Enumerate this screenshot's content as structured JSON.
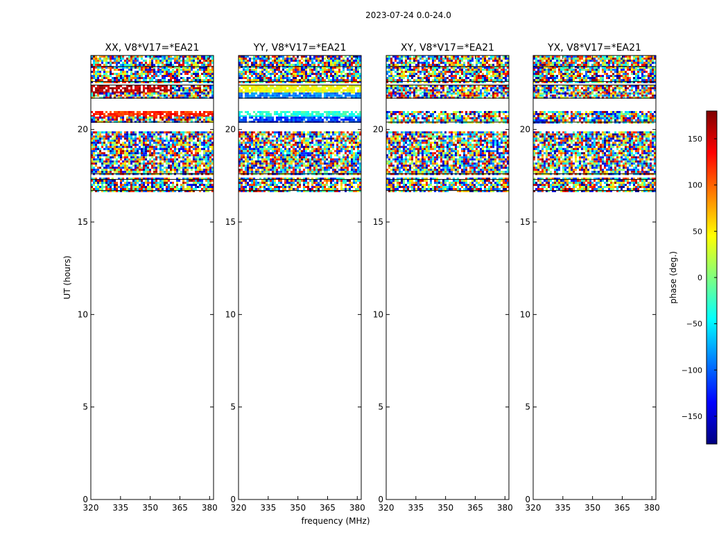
{
  "figure": {
    "suptitle": "2023-07-24 0.0-24.0",
    "xlabel": "frequency (MHz)",
    "ylabel": "UT (hours)"
  },
  "colorbar": {
    "label": "phase (deg.)",
    "range": [
      -180,
      180
    ],
    "ticks": [
      150,
      100,
      50,
      0,
      -50,
      -100,
      -150
    ],
    "tick_labels": [
      "150",
      "100",
      "50",
      "0",
      "−50",
      "−100",
      "−150"
    ],
    "colormap": "jet",
    "colors": [
      "#00007f",
      "#0000ff",
      "#007fff",
      "#00ffff",
      "#7fff7f",
      "#ffff00",
      "#ff7f00",
      "#ff0000",
      "#7f0000"
    ]
  },
  "chart_data": [
    {
      "type": "heatmap",
      "title": "XX, V8*V17=*EA21",
      "xlim": [
        320,
        382
      ],
      "ylim": [
        0,
        24
      ],
      "xticks": [
        320,
        335,
        350,
        365,
        380
      ],
      "yticks": [
        0,
        5,
        10,
        15,
        20
      ],
      "data_bands": [
        {
          "ut": [
            23.4,
            24.0
          ],
          "phase": "noisy"
        },
        {
          "ut": [
            22.6,
            23.4
          ],
          "phase": "noisy"
        },
        {
          "ut": [
            22.0,
            22.4
          ],
          "phase": 160,
          "note": "dark red coherent band, noisy above 360 MHz"
        },
        {
          "ut": [
            21.7,
            22.0
          ],
          "phase": "noisy"
        },
        {
          "ut": [
            20.7,
            21.0
          ],
          "phase": 120
        },
        {
          "ut": [
            20.4,
            20.7
          ],
          "phase": "noisy"
        },
        {
          "ut": [
            17.6,
            19.9
          ],
          "phase": "noisy"
        },
        {
          "ut": [
            16.7,
            17.4
          ],
          "phase": "noisy"
        }
      ]
    },
    {
      "type": "heatmap",
      "title": "YY, V8*V17=*EA21",
      "xlim": [
        320,
        382
      ],
      "ylim": [
        0,
        24
      ],
      "xticks": [
        320,
        335,
        350,
        365,
        380
      ],
      "yticks": [
        0,
        5,
        10,
        15,
        20
      ],
      "data_bands": [
        {
          "ut": [
            23.4,
            24.0
          ],
          "phase": "noisy"
        },
        {
          "ut": [
            22.6,
            23.4
          ],
          "phase": "noisy"
        },
        {
          "ut": [
            22.0,
            22.4
          ],
          "phase": 40,
          "note": "yellow-green coherent band"
        },
        {
          "ut": [
            21.7,
            22.0
          ],
          "phase": -90
        },
        {
          "ut": [
            20.7,
            21.0
          ],
          "phase": -30
        },
        {
          "ut": [
            20.4,
            20.7
          ],
          "phase": -110
        },
        {
          "ut": [
            17.6,
            19.9
          ],
          "phase": "noisy"
        },
        {
          "ut": [
            16.7,
            17.4
          ],
          "phase": "noisy"
        }
      ]
    },
    {
      "type": "heatmap",
      "title": "XY, V8*V17=*EA21",
      "xlim": [
        320,
        382
      ],
      "ylim": [
        0,
        24
      ],
      "xticks": [
        320,
        335,
        350,
        365,
        380
      ],
      "yticks": [
        0,
        5,
        10,
        15,
        20
      ],
      "data_bands": [
        {
          "ut": [
            23.4,
            24.0
          ],
          "phase": "noisy"
        },
        {
          "ut": [
            22.6,
            23.4
          ],
          "phase": "noisy"
        },
        {
          "ut": [
            22.0,
            22.4
          ],
          "phase": "noisy"
        },
        {
          "ut": [
            21.7,
            22.0
          ],
          "phase": "noisy"
        },
        {
          "ut": [
            20.4,
            21.0
          ],
          "phase": "noisy"
        },
        {
          "ut": [
            17.6,
            19.9
          ],
          "phase": "noisy"
        },
        {
          "ut": [
            16.7,
            17.4
          ],
          "phase": "noisy"
        }
      ]
    },
    {
      "type": "heatmap",
      "title": "YX, V8*V17=*EA21",
      "xlim": [
        320,
        382
      ],
      "ylim": [
        0,
        24
      ],
      "xticks": [
        320,
        335,
        350,
        365,
        380
      ],
      "yticks": [
        0,
        5,
        10,
        15,
        20
      ],
      "data_bands": [
        {
          "ut": [
            23.4,
            24.0
          ],
          "phase": "noisy"
        },
        {
          "ut": [
            22.6,
            23.4
          ],
          "phase": "noisy"
        },
        {
          "ut": [
            22.0,
            22.4
          ],
          "phase": "noisy"
        },
        {
          "ut": [
            21.7,
            22.0
          ],
          "phase": "noisy"
        },
        {
          "ut": [
            20.4,
            21.0
          ],
          "phase": "noisy"
        },
        {
          "ut": [
            17.6,
            19.9
          ],
          "phase": "noisy"
        },
        {
          "ut": [
            16.7,
            17.4
          ],
          "phase": "noisy"
        }
      ]
    }
  ]
}
